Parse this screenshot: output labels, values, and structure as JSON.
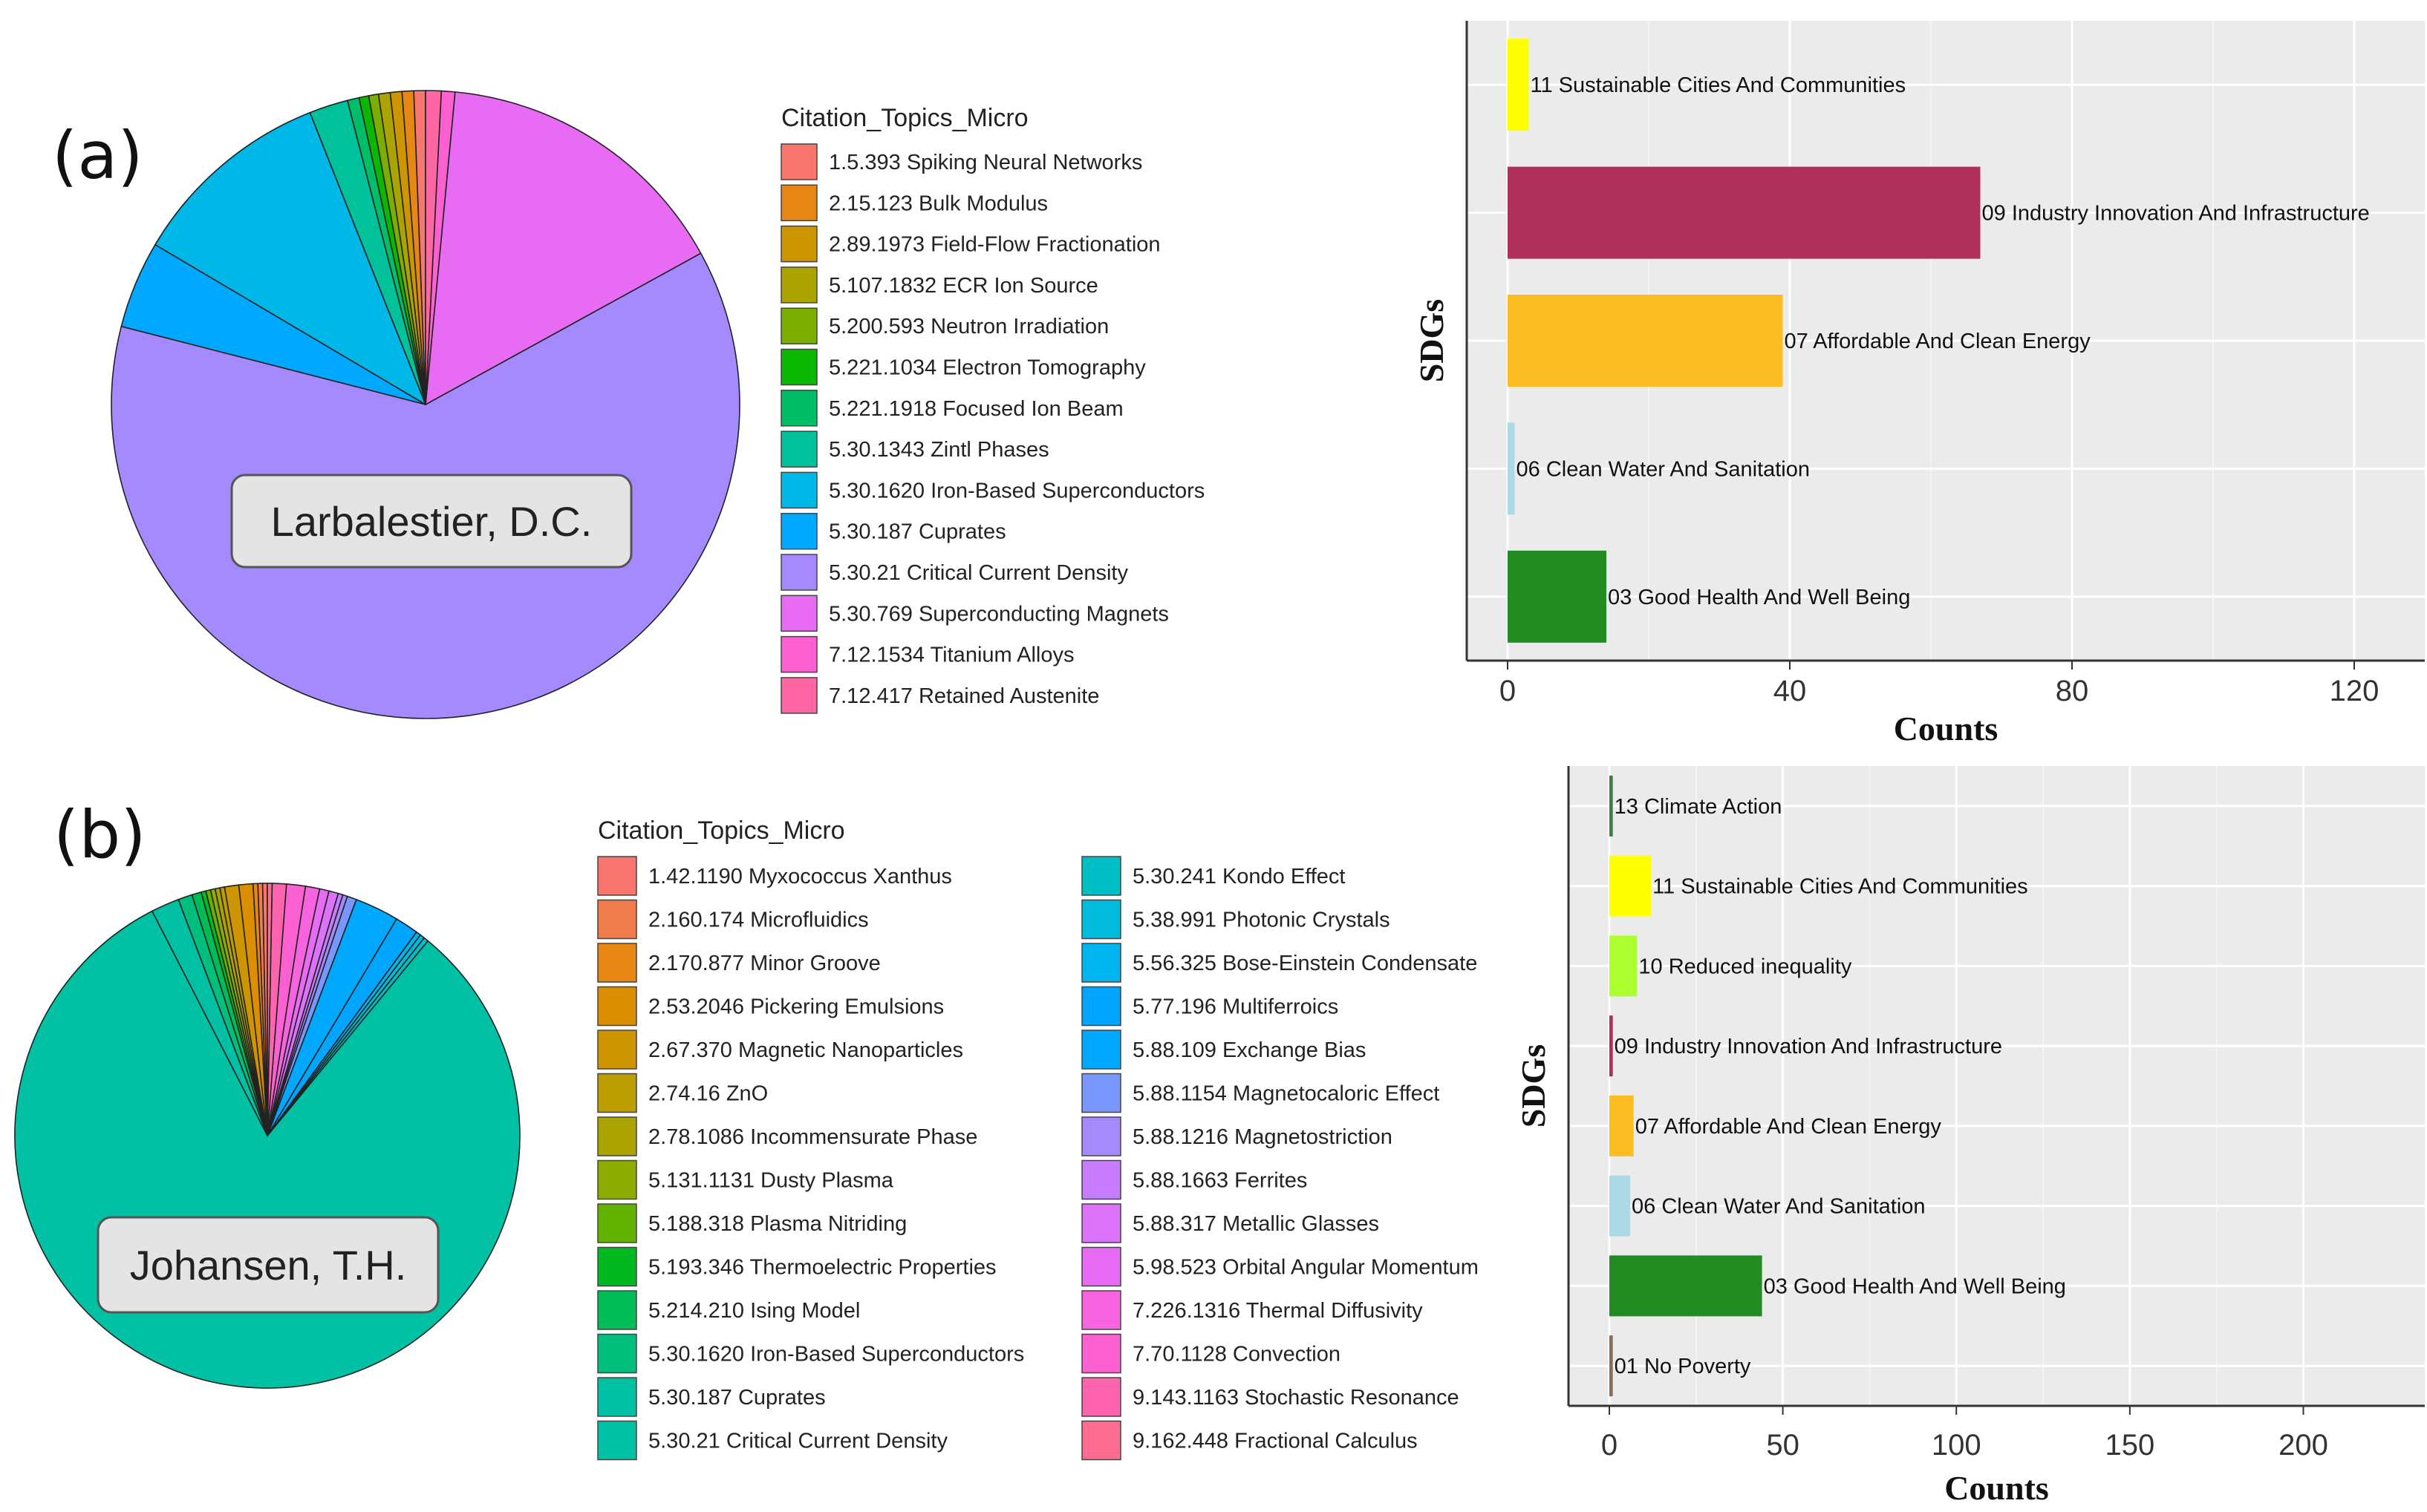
{
  "chart_data": [
    {
      "panel": "(a)",
      "type": "pie",
      "author": "Larbalestier, D.C.",
      "legend_title": "Citation_Topics_Micro",
      "slices": [
        {
          "label": "1.5.393 Spiking Neural Networks",
          "value": 0.6,
          "color": "#F8766D"
        },
        {
          "label": "2.15.123 Bulk Modulus",
          "value": 0.6,
          "color": "#E68613"
        },
        {
          "label": "2.89.1973 Field-Flow Fractionation",
          "value": 0.6,
          "color": "#CD9600"
        },
        {
          "label": "5.107.1832 ECR Ion Source",
          "value": 0.6,
          "color": "#ABA300"
        },
        {
          "label": "5.200.593 Neutron Irradiation",
          "value": 0.5,
          "color": "#7CAE00"
        },
        {
          "label": "5.221.1034 Electron Tomography",
          "value": 0.5,
          "color": "#0CB702"
        },
        {
          "label": "5.221.1918 Focused Ion Beam",
          "value": 0.6,
          "color": "#00BE67"
        },
        {
          "label": "5.30.1343 Zintl Phases",
          "value": 2.0,
          "color": "#00C19A"
        },
        {
          "label": "5.30.1620 Iron-Based Superconductors",
          "value": 10.5,
          "color": "#00B8E7"
        },
        {
          "label": "5.30.187 Cuprates",
          "value": 4.5,
          "color": "#00A9FF"
        },
        {
          "label": "5.30.21 Critical Current Density",
          "value": 62.0,
          "color": "#A58AFF"
        },
        {
          "label": "5.30.769 Superconducting Magnets",
          "value": 15.5,
          "color": "#E76BF3"
        },
        {
          "label": "7.12.1534 Titanium Alloys",
          "value": 0.7,
          "color": "#FD61D1"
        },
        {
          "label": "7.12.417 Retained Austenite",
          "value": 0.8,
          "color": "#FF67A4"
        }
      ]
    },
    {
      "panel": "(a)",
      "type": "bar",
      "orientation": "horizontal",
      "xlabel": "Counts",
      "ylabel": "SDGs",
      "xlim": [
        0,
        130
      ],
      "xticks": [
        0,
        40,
        80,
        120
      ],
      "bars": [
        {
          "label": "11 Sustainable Cities And Communities",
          "value": 3,
          "color": "#FFFF00"
        },
        {
          "label": "09 Industry Innovation And Infrastructure",
          "value": 67,
          "color": "#B0305C"
        },
        {
          "label": "07 Affordable And Clean Energy",
          "value": 39,
          "color": "#FBBD22"
        },
        {
          "label": "06 Clean Water And Sanitation",
          "value": 1,
          "color": "#ADD8E6"
        },
        {
          "label": "03 Good Health And Well Being",
          "value": 14,
          "color": "#228B22"
        }
      ]
    },
    {
      "panel": "(b)",
      "type": "pie",
      "author": "Johansen, T.H.",
      "legend_title": "Citation_Topics_Micro",
      "slices": [
        {
          "label": "1.42.1190 Myxococcus Xanthus",
          "value": 0.3,
          "color": "#F8766D"
        },
        {
          "label": "2.160.174 Microfluidics",
          "value": 0.3,
          "color": "#F17D4D"
        },
        {
          "label": "2.170.877 Minor Groove",
          "value": 0.3,
          "color": "#E68613"
        },
        {
          "label": "2.53.2046 Pickering Emulsions",
          "value": 0.9,
          "color": "#DB8E00"
        },
        {
          "label": "2.67.370 Magnetic Nanoparticles",
          "value": 0.9,
          "color": "#CD9600"
        },
        {
          "label": "2.74.16 ZnO",
          "value": 0.3,
          "color": "#BB9D00"
        },
        {
          "label": "2.78.1086 Incommensurate Phase",
          "value": 0.3,
          "color": "#ABA300"
        },
        {
          "label": "5.131.1131 Dusty Plasma",
          "value": 0.3,
          "color": "#8EAB00"
        },
        {
          "label": "5.188.318 Plasma Nitriding",
          "value": 0.3,
          "color": "#64B200"
        },
        {
          "label": "5.193.346 Thermoelectric Properties",
          "value": 0.3,
          "color": "#00B81F"
        },
        {
          "label": "5.214.210 Ising Model",
          "value": 0.6,
          "color": "#00BC56"
        },
        {
          "label": "5.30.1620 Iron-Based Superconductors",
          "value": 0.9,
          "color": "#00BF7D"
        },
        {
          "label": "5.30.187 Cuprates",
          "value": 1.8,
          "color": "#00C0A3"
        },
        {
          "label": "5.30.21 Critical Current Density",
          "value": 81.0,
          "color": "#00C1A3"
        },
        {
          "label": "5.30.241 Kondo Effect",
          "value": 0.3,
          "color": "#00BFC4"
        },
        {
          "label": "5.38.991 Photonic Crystals",
          "value": 0.3,
          "color": "#00BBDA"
        },
        {
          "label": "5.56.325 Bose-Einstein Condensate",
          "value": 0.3,
          "color": "#00B4F0"
        },
        {
          "label": "5.77.196 Multiferroics",
          "value": 1.5,
          "color": "#00A5FF"
        },
        {
          "label": "5.88.109 Exchange Bias",
          "value": 2.8,
          "color": "#00A9FF"
        },
        {
          "label": "5.88.1154 Magnetocaloric Effect",
          "value": 0.6,
          "color": "#7997FF"
        },
        {
          "label": "5.88.1216 Magnetostriction",
          "value": 0.3,
          "color": "#A58AFF"
        },
        {
          "label": "5.88.1663 Ferrites",
          "value": 0.3,
          "color": "#C77CFF"
        },
        {
          "label": "5.88.317 Metallic Glasses",
          "value": 0.6,
          "color": "#DC71FA"
        },
        {
          "label": "5.98.523 Orbital Angular Momentum",
          "value": 0.6,
          "color": "#E76BF3"
        },
        {
          "label": "7.226.1316 Thermal Diffusivity",
          "value": 0.9,
          "color": "#F863DF"
        },
        {
          "label": "7.70.1128 Convection",
          "value": 1.2,
          "color": "#FD61D1"
        },
        {
          "label": "9.143.1163 Stochastic Resonance",
          "value": 0.9,
          "color": "#FF65AE"
        },
        {
          "label": "9.162.448 Fractional Calculus",
          "value": 0.3,
          "color": "#FF6C91"
        }
      ]
    },
    {
      "panel": "(b)",
      "type": "bar",
      "orientation": "horizontal",
      "xlabel": "Counts",
      "ylabel": "SDGs",
      "xlim": [
        0,
        235
      ],
      "xticks": [
        0,
        50,
        100,
        150,
        200
      ],
      "bars": [
        {
          "label": "13 Climate Action",
          "value": 1,
          "color": "#3F7E44"
        },
        {
          "label": "11 Sustainable Cities And Communities",
          "value": 12,
          "color": "#FFFF00"
        },
        {
          "label": "10 Reduced inequality",
          "value": 8,
          "color": "#ADFF2F"
        },
        {
          "label": "09 Industry Innovation And Infrastructure",
          "value": 1,
          "color": "#B0305C"
        },
        {
          "label": "07 Affordable And Clean Energy",
          "value": 7,
          "color": "#FBBD22"
        },
        {
          "label": "06 Clean Water And Sanitation",
          "value": 6,
          "color": "#ADD8E6"
        },
        {
          "label": "03 Good Health And Well Being",
          "value": 44,
          "color": "#228B22"
        },
        {
          "label": "01 No Poverty",
          "value": 1,
          "color": "#8B6B5A"
        }
      ]
    }
  ]
}
